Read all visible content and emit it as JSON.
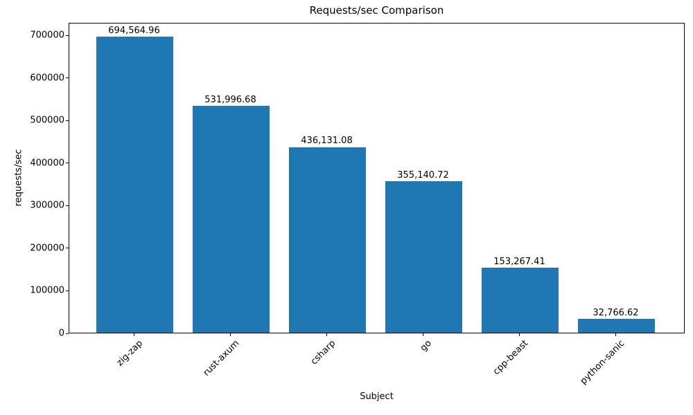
{
  "chart_data": {
    "type": "bar",
    "title": "Requests/sec Comparison",
    "xlabel": "Subject",
    "ylabel": "requests/sec",
    "categories": [
      "zig-zap",
      "rust-axum",
      "csharp",
      "go",
      "cpp-beast",
      "python-sanic"
    ],
    "values": [
      694564.96,
      531996.68,
      436131.08,
      355140.72,
      153267.41,
      32766.62
    ],
    "value_labels": [
      "694,564.96",
      "531,996.68",
      "436,131.08",
      "355,140.72",
      "153,267.41",
      "32,766.62"
    ],
    "yticks": [
      0,
      100000,
      200000,
      300000,
      400000,
      500000,
      600000,
      700000
    ],
    "ytick_labels": [
      "0",
      "100000",
      "200000",
      "300000",
      "400000",
      "500000",
      "600000",
      "700000"
    ],
    "ylim": [
      0,
      729293
    ],
    "bar_color": "#1f77b4",
    "grid": false,
    "legend": null
  }
}
